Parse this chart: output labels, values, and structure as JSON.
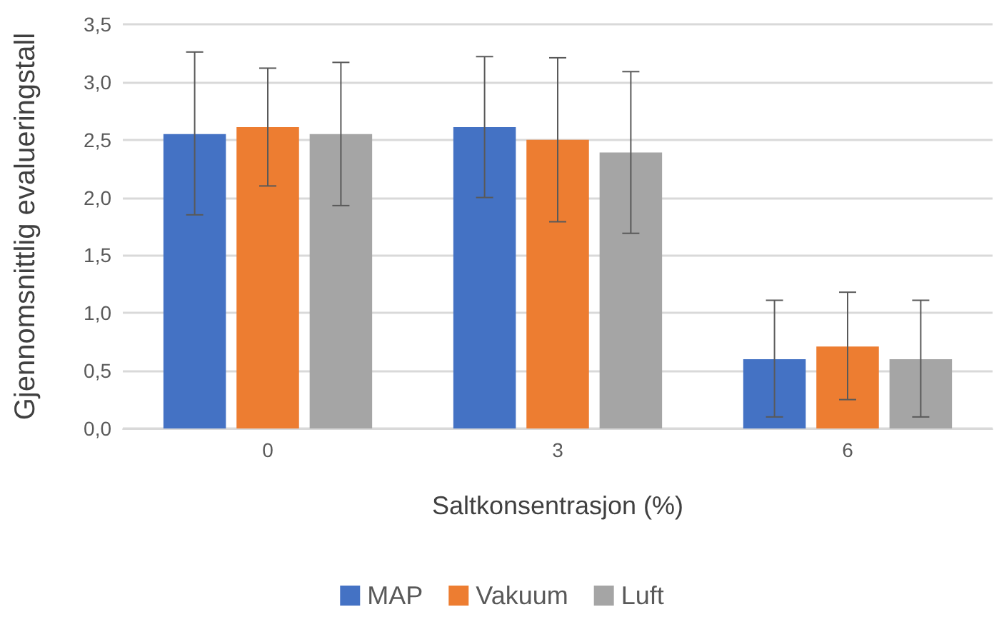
{
  "chart_data": {
    "type": "bar",
    "xlabel": "Saltkonsentrasjon (%)",
    "ylabel": "Gjennomsnittlig evalueringstall",
    "categories": [
      "0",
      "3",
      "6"
    ],
    "series": [
      {
        "name": "MAP",
        "color": "#4472c4",
        "values": [
          2.55,
          2.61,
          0.6
        ],
        "errors": [
          [
            1.85,
            3.26
          ],
          [
            2.0,
            3.22
          ],
          [
            0.1,
            1.11
          ]
        ]
      },
      {
        "name": "Vakuum",
        "color": "#ed7d31",
        "values": [
          2.61,
          2.5,
          0.71
        ],
        "errors": [
          [
            2.1,
            3.12
          ],
          [
            1.79,
            3.21
          ],
          [
            0.25,
            1.18
          ]
        ]
      },
      {
        "name": "Luft",
        "color": "#a5a5a5",
        "values": [
          2.55,
          2.39,
          0.6
        ],
        "errors": [
          [
            1.93,
            3.17
          ],
          [
            1.69,
            3.09
          ],
          [
            0.1,
            1.11
          ]
        ]
      }
    ],
    "ylim": [
      0,
      3.5
    ],
    "yticks": [
      {
        "value": 0,
        "label": "0,0"
      },
      {
        "value": 0.5,
        "label": "0,5"
      },
      {
        "value": 1,
        "label": "1,0"
      },
      {
        "value": 1.5,
        "label": "1,5"
      },
      {
        "value": 2,
        "label": "2,0"
      },
      {
        "value": 2.5,
        "label": "2,5"
      },
      {
        "value": 3,
        "label": "3,0"
      },
      {
        "value": 3.5,
        "label": "3,5"
      }
    ],
    "grid": "y",
    "legend": "bottom"
  }
}
